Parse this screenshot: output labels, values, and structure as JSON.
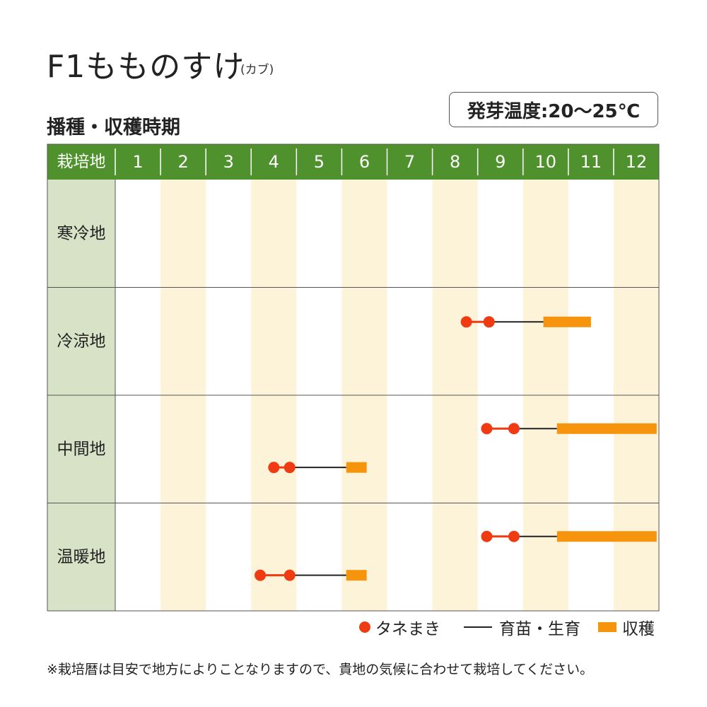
{
  "title": "F1もものすけ",
  "title_sub": "(カブ)",
  "section_title": "播種・収穫時期",
  "temperature": "発芽温度:20〜25℃",
  "note": "※栽培暦は目安で地方によりことなりますので、貴地の気候に合わせて栽培してください。",
  "legend": {
    "sowing": "タネまき",
    "growing": "育苗・生育",
    "harvest": "収穫"
  },
  "colors": {
    "header_green": "#4f912c",
    "region_bg": "#d8e2c6",
    "stripe": "#fdf3d8",
    "sowing": "#f03a12",
    "growing": "#222222",
    "harvest": "#f7940d"
  },
  "chart_data": {
    "type": "table",
    "corner_label": "栽培地",
    "months": [
      "1",
      "2",
      "3",
      "4",
      "5",
      "6",
      "7",
      "8",
      "9",
      "10",
      "11",
      "12"
    ],
    "regions": [
      {
        "name": "寒冷地",
        "schedules": []
      },
      {
        "name": "冷涼地",
        "schedules": [
          {
            "sow_start": 8.75,
            "sow_end": 9.25,
            "harvest_start": 10.45,
            "harvest_end": 11.5
          }
        ]
      },
      {
        "name": "中間地",
        "schedules": [
          {
            "sow_start": 9.2,
            "sow_end": 9.8,
            "harvest_start": 10.75,
            "harvest_end": 12.95
          },
          {
            "sow_start": 4.5,
            "sow_end": 4.85,
            "harvest_start": 6.1,
            "harvest_end": 6.55
          }
        ]
      },
      {
        "name": "温暖地",
        "schedules": [
          {
            "sow_start": 9.2,
            "sow_end": 9.8,
            "harvest_start": 10.75,
            "harvest_end": 12.95
          },
          {
            "sow_start": 4.2,
            "sow_end": 4.85,
            "harvest_start": 6.1,
            "harvest_end": 6.55
          }
        ]
      }
    ]
  }
}
